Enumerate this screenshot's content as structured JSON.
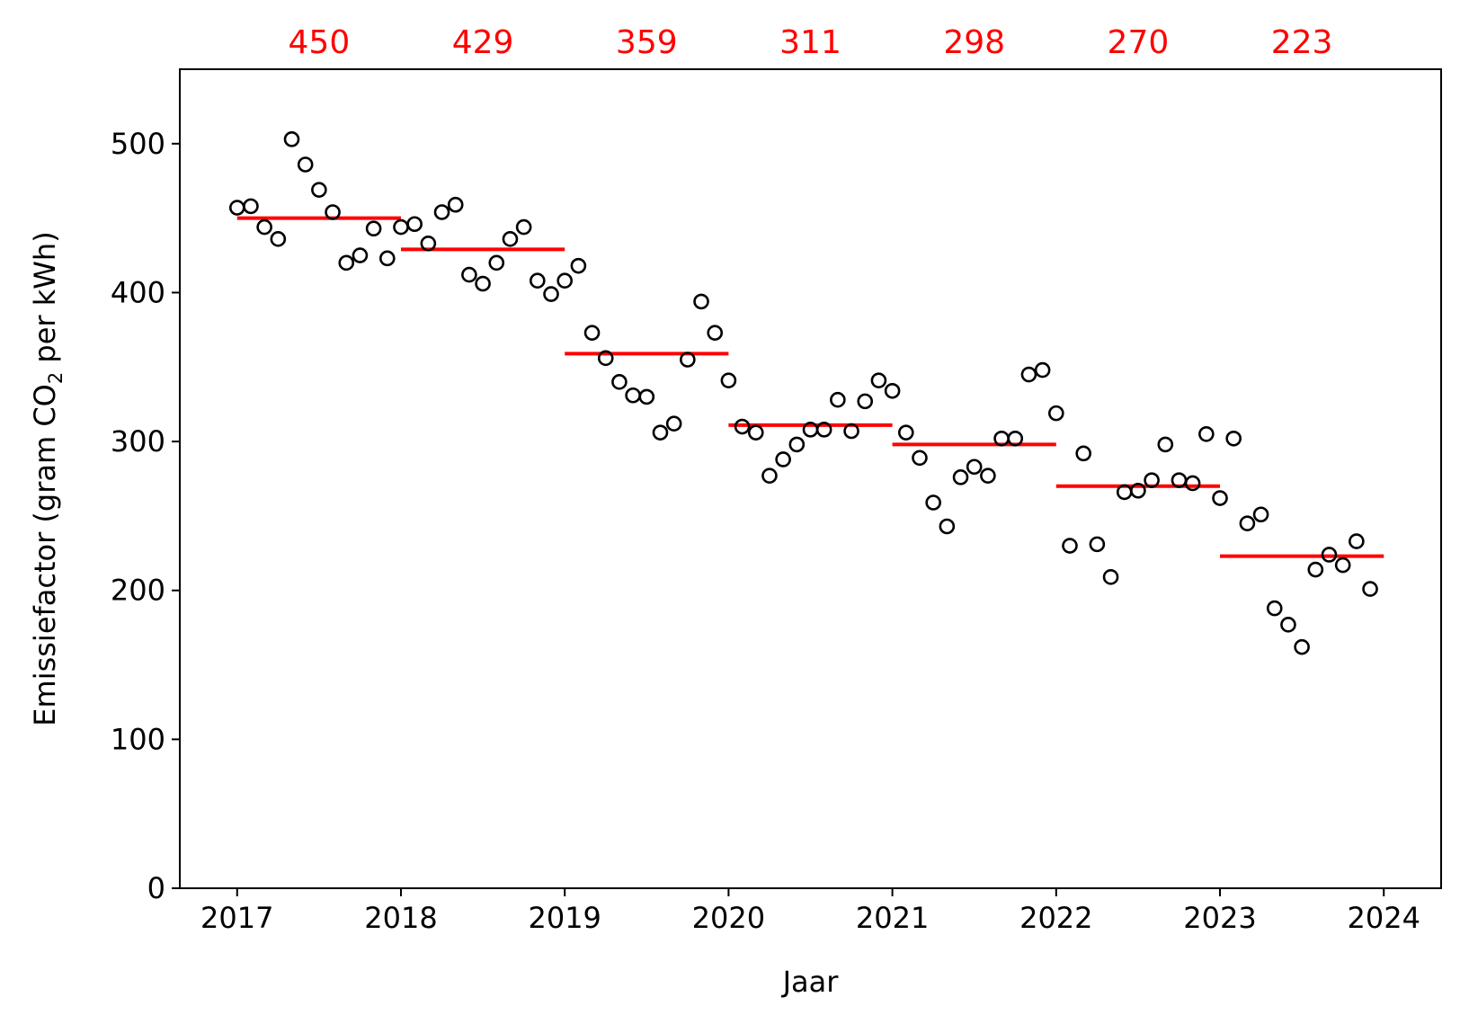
{
  "chart_data": {
    "type": "scatter",
    "xlabel": "Jaar",
    "ylabel": {
      "prefix": "Emissiefactor (gram CO",
      "subscript": "2",
      "suffix": " per kWh)"
    },
    "xlim": [
      2016.65,
      2024.35
    ],
    "ylim": [
      0,
      550
    ],
    "x_ticks": [
      "2017",
      "2018",
      "2019",
      "2020",
      "2021",
      "2022",
      "2023",
      "2024"
    ],
    "y_ticks": [
      "0",
      "100",
      "200",
      "300",
      "400",
      "500"
    ],
    "grid": false,
    "colors": {
      "points": "#000000",
      "annual_mean": "#ff0000"
    },
    "monthly_values": [
      {
        "year": 2017,
        "values": [
          457,
          458,
          444,
          436,
          503,
          486,
          469,
          454,
          420,
          425,
          443,
          423
        ]
      },
      {
        "year": 2018,
        "values": [
          444,
          446,
          433,
          454,
          459,
          412,
          406,
          420,
          436,
          444,
          408,
          399
        ]
      },
      {
        "year": 2019,
        "values": [
          408,
          418,
          373,
          356,
          340,
          331,
          330,
          306,
          312,
          355,
          394,
          373
        ]
      },
      {
        "year": 2020,
        "values": [
          341,
          310,
          306,
          277,
          288,
          298,
          308,
          308,
          328,
          307,
          327,
          341
        ]
      },
      {
        "year": 2021,
        "values": [
          334,
          306,
          289,
          259,
          243,
          276,
          283,
          277,
          302,
          302,
          345,
          348
        ]
      },
      {
        "year": 2022,
        "values": [
          319,
          230,
          292,
          231,
          209,
          266,
          267,
          274,
          298,
          274,
          272,
          305
        ]
      },
      {
        "year": 2023,
        "values": [
          262,
          302,
          245,
          251,
          188,
          177,
          162,
          214,
          224,
          217,
          233,
          201
        ]
      }
    ],
    "annual_means": [
      {
        "year": 2017,
        "value": 450,
        "label": "450"
      },
      {
        "year": 2018,
        "value": 429,
        "label": "429"
      },
      {
        "year": 2019,
        "value": 359,
        "label": "359"
      },
      {
        "year": 2020,
        "value": 311,
        "label": "311"
      },
      {
        "year": 2021,
        "value": 298,
        "label": "298"
      },
      {
        "year": 2022,
        "value": 270,
        "label": "270"
      },
      {
        "year": 2023,
        "value": 223,
        "label": "223"
      }
    ]
  }
}
